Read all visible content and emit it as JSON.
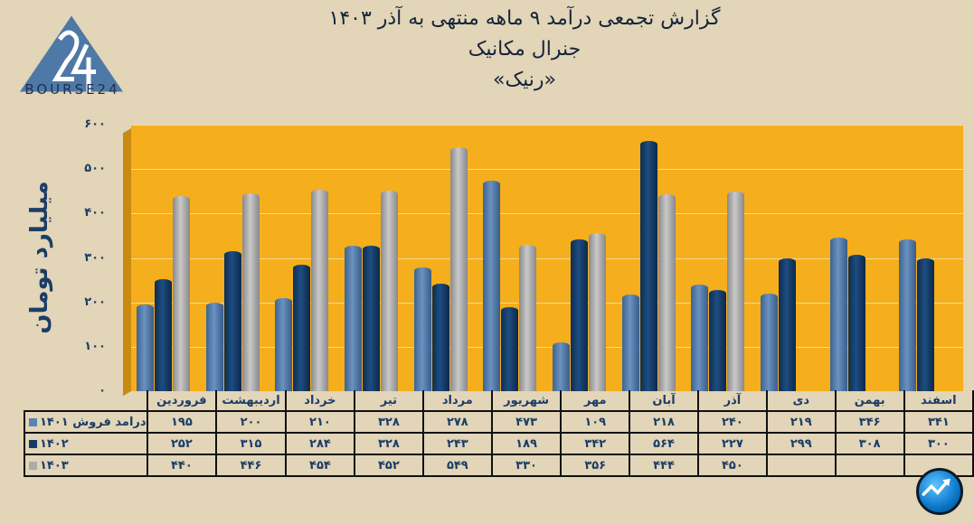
{
  "logo": {
    "text": "BOURSE24",
    "numeral": "24",
    "color": "#4e78a6"
  },
  "header": {
    "line1": "گزارش تجمعی درآمد ۹ ماهه منتهی به آذر ۱۴۰۳",
    "line2": "جنرال مکانیک",
    "line3": "«رنیک»"
  },
  "chart_data": {
    "type": "bar",
    "title": "گزارش تجمعی درآمد ۹ ماهه منتهی به آذر ۱۴۰۳ - جنرال مکانیک «رنیک»",
    "xlabel": "",
    "ylabel": "میلیارد تومان",
    "ylim": [
      0,
      600
    ],
    "yticks": [
      0,
      100,
      200,
      300,
      400,
      500,
      600
    ],
    "ytick_labels": [
      "۰",
      "۱۰۰",
      "۲۰۰",
      "۳۰۰",
      "۴۰۰",
      "۵۰۰",
      "۶۰۰"
    ],
    "grid": true,
    "legend_position": "data-table",
    "categories": [
      "فروردین",
      "اردیبهشت",
      "خرداد",
      "تیر",
      "مرداد",
      "شهریور",
      "مهر",
      "آبان",
      "آذر",
      "دی",
      "بهمن",
      "اسفند"
    ],
    "series": [
      {
        "name": "درامد فروش ۱۴۰۱",
        "color": "#5a82b2",
        "values": [
          195,
          200,
          210,
          328,
          278,
          473,
          109,
          218,
          240,
          219,
          346,
          341
        ],
        "labels": [
          "۱۹۵",
          "۲۰۰",
          "۲۱۰",
          "۳۲۸",
          "۲۷۸",
          "۴۷۳",
          "۱۰۹",
          "۲۱۸",
          "۲۴۰",
          "۲۱۹",
          "۳۴۶",
          "۳۴۱"
        ]
      },
      {
        "name": "۱۴۰۲",
        "color": "#143d6b",
        "values": [
          252,
          315,
          284,
          328,
          243,
          189,
          342,
          564,
          227,
          299,
          308,
          300
        ],
        "labels": [
          "۲۵۲",
          "۳۱۵",
          "۲۸۴",
          "۳۲۸",
          "۲۴۳",
          "۱۸۹",
          "۳۴۲",
          "۵۶۴",
          "۲۲۷",
          "۲۹۹",
          "۳۰۸",
          "۳۰۰"
        ]
      },
      {
        "name": "۱۴۰۳",
        "color": "#ababab",
        "values": [
          440,
          446,
          454,
          452,
          549,
          330,
          356,
          444,
          450,
          null,
          null,
          null
        ],
        "labels": [
          "۴۴۰",
          "۴۴۶",
          "۴۵۴",
          "۴۵۲",
          "۵۴۹",
          "۳۳۰",
          "۳۵۶",
          "۴۴۴",
          "۴۵۰",
          "",
          "",
          ""
        ]
      }
    ],
    "plot_background": "#f5ae1c"
  },
  "badge": {
    "icon": "trend-up-icon"
  }
}
